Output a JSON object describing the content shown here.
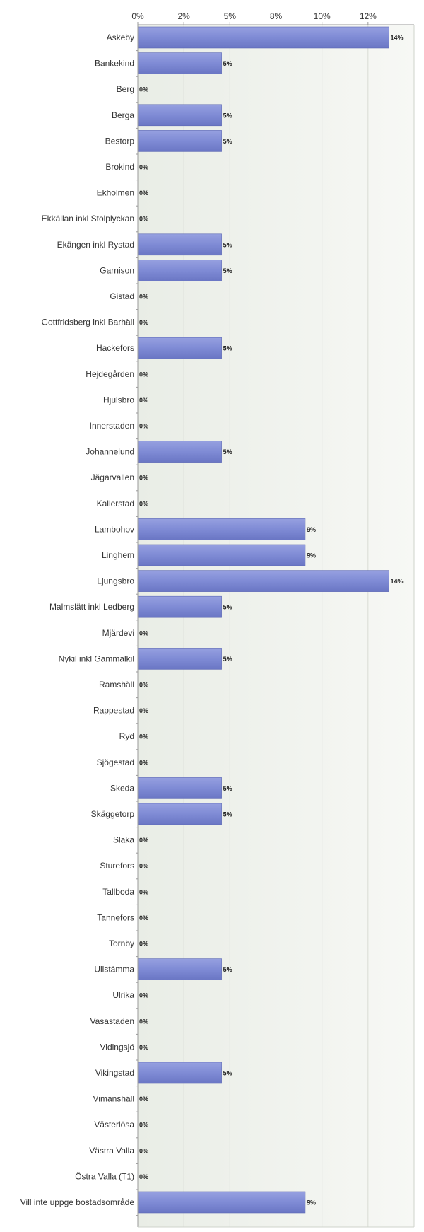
{
  "chart_data": {
    "type": "bar",
    "orientation": "horizontal",
    "xlim": [
      0,
      15
    ],
    "x_ticks": [
      0,
      2.5,
      5,
      7.5,
      10,
      12.5
    ],
    "x_tick_labels": [
      "0%",
      "2%",
      "5%",
      "8%",
      "10%",
      "12%"
    ],
    "grid": true,
    "legend": "none",
    "colors": {
      "bar": "#7f8bd5",
      "bar_dark": "#5d68b4",
      "plot_bg": "#eef1eb",
      "grid": "#d8dcd4",
      "axis": "#9a9a9a"
    },
    "categories": [
      "Askeby",
      "Bankekind",
      "Berg",
      "Berga",
      "Bestorp",
      "Brokind",
      "Ekholmen",
      "Ekkällan inkl Stolplyckan",
      "Ekängen inkl Rystad",
      "Garnison",
      "Gistad",
      "Gottfridsberg inkl Barhäll",
      "Hackefors",
      "Hejdegården",
      "Hjulsbro",
      "Innerstaden",
      "Johannelund",
      "Jägarvallen",
      "Kallerstad",
      "Lambohov",
      "Linghem",
      "Ljungsbro",
      "Malmslätt inkl Ledberg",
      "Mjärdevi",
      "Nykil inkl Gammalkil",
      "Ramshäll",
      "Rappestad",
      "Ryd",
      "Sjögestad",
      "Skeda",
      "Skäggetorp",
      "Slaka",
      "Sturefors",
      "Tallboda",
      "Tannefors",
      "Tornby",
      "Ullstämma",
      "Ulrika",
      "Vasastaden",
      "Vidingsjö",
      "Vikingstad",
      "Vimanshäll",
      "Västerlösa",
      "Västra Valla",
      "Östra Valla (T1)",
      "Vill inte uppge bostadsområde"
    ],
    "values": [
      13.64,
      4.55,
      0,
      4.55,
      4.55,
      0,
      0,
      0,
      4.55,
      4.55,
      0,
      0,
      4.55,
      0,
      0,
      0,
      4.55,
      0,
      0,
      9.09,
      9.09,
      13.64,
      4.55,
      0,
      4.55,
      0,
      0,
      0,
      0,
      4.55,
      4.55,
      0,
      0,
      0,
      0,
      0,
      4.55,
      0,
      0,
      0,
      4.55,
      0,
      0,
      0,
      0,
      9.09
    ],
    "value_labels": [
      "14%",
      "5%",
      "0%",
      "5%",
      "5%",
      "0%",
      "0%",
      "0%",
      "5%",
      "5%",
      "0%",
      "0%",
      "5%",
      "0%",
      "0%",
      "0%",
      "5%",
      "0%",
      "0%",
      "9%",
      "9%",
      "14%",
      "5%",
      "0%",
      "5%",
      "0%",
      "0%",
      "0%",
      "0%",
      "5%",
      "5%",
      "0%",
      "0%",
      "0%",
      "0%",
      "0%",
      "5%",
      "0%",
      "0%",
      "0%",
      "5%",
      "0%",
      "0%",
      "0%",
      "0%",
      "9%"
    ]
  }
}
